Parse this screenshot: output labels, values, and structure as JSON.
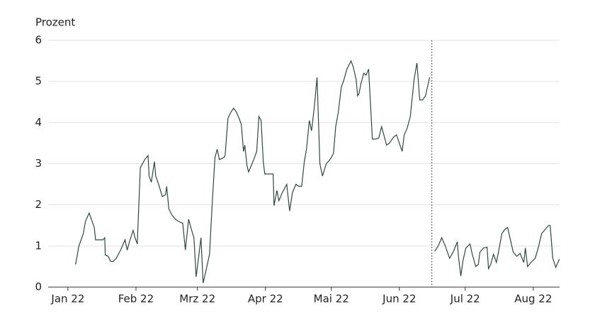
{
  "chart_data": {
    "type": "line",
    "y_label": "Prozent",
    "x": [
      3.5,
      5,
      7,
      8,
      9.7,
      11,
      12,
      12.6,
      14,
      16,
      16.8,
      17,
      18.4,
      19.4,
      20.6,
      22,
      24,
      26,
      27,
      28,
      29.7,
      30.6,
      31.6,
      33,
      35,
      36.5,
      37,
      38,
      38.7,
      39.4,
      40,
      41.3,
      43,
      44.5,
      45,
      46,
      47.4,
      49,
      50.3,
      52.3,
      53.5,
      55,
      56,
      57.4,
      58.4,
      59.7,
      60.6,
      61.6,
      62.9,
      64.5,
      65.8,
      67,
      68,
      69,
      71,
      71.6,
      72.9,
      74.2,
      75.5,
      76.8,
      78,
      79,
      80,
      80.6,
      81.6,
      82.3,
      83.9,
      85,
      86,
      87,
      88,
      89,
      89.7,
      91,
      92.6,
      93.5,
      93.9,
      95.2,
      96.1,
      97.7,
      99.7,
      101,
      102.3,
      103.9,
      105.2,
      106.5,
      107.7,
      108.7,
      110,
      111,
      112.3,
      113.5,
      114.8,
      116,
      117.7,
      119.4,
      121,
      122,
      123.2,
      124.5,
      125.8,
      127.1,
      129,
      130,
      131.3,
      132,
      132.6,
      133.5,
      134.8,
      135.8,
      137,
      138.7,
      140,
      141.6,
      142.9,
      144.2,
      145.2,
      146.5,
      148.4,
      149.7,
      151.3,
      152.3,
      153.2,
      154.5,
      156,
      157.7,
      159,
      160.3,
      161.6,
      162.9,
      164.8,
      165.8,
      167.1,
      168.7,
      170.3,
      171.9,
      173.9,
      175.5,
      177.4,
      178,
      179,
      180,
      181.3,
      183.2,
      184.2,
      185.8,
      187,
      187.7,
      189.4,
      191,
      191.6,
      192.6,
      193.9,
      195.2,
      196.5,
      197.7,
      199,
      200.3,
      201.6,
      202.9,
      204.5,
      206,
      207.7,
      208.4,
      209.4,
      211,
      212.9,
      214.5,
      215.8,
      217.4,
      219,
      219.7,
      220.9,
      222.3,
      223.9
    ],
    "series": [
      {
        "color": "#2f4743",
        "values": [
          0.55,
          1.0,
          1.3,
          1.6,
          1.8,
          1.6,
          1.45,
          1.15,
          1.15,
          1.15,
          1.2,
          0.78,
          0.75,
          0.63,
          0.62,
          0.7,
          0.9,
          1.15,
          0.9,
          1.1,
          1.38,
          1.2,
          1.05,
          2.9,
          3.1,
          3.2,
          2.7,
          2.55,
          2.8,
          3.05,
          2.7,
          2.5,
          2.2,
          2.25,
          2.45,
          1.9,
          1.75,
          1.65,
          1.6,
          1.55,
          0.9,
          1.65,
          1.45,
          1.2,
          0.25,
          0.8,
          1.2,
          0.1,
          0.4,
          0.8,
          2.1,
          3.15,
          3.35,
          3.1,
          3.15,
          3.2,
          4.1,
          4.25,
          4.35,
          4.25,
          4.1,
          3.95,
          3.3,
          3.45,
          2.95,
          2.8,
          3.0,
          3.15,
          3.3,
          4.15,
          4.05,
          3.05,
          2.75,
          2.75,
          2.75,
          2.75,
          1.98,
          2.35,
          2.1,
          2.3,
          2.5,
          1.85,
          2.3,
          2.5,
          2.45,
          2.45,
          3.05,
          3.35,
          4.05,
          3.8,
          4.4,
          5.1,
          3.0,
          2.7,
          3.0,
          3.1,
          3.25,
          3.9,
          4.25,
          4.85,
          5.05,
          5.3,
          5.5,
          5.35,
          5.05,
          4.65,
          4.7,
          4.95,
          5.2,
          5.15,
          5.3,
          3.6,
          3.6,
          3.62,
          3.9,
          3.65,
          3.45,
          3.5,
          3.65,
          3.7,
          3.45,
          3.3,
          3.7,
          3.85,
          4.15,
          5.05,
          5.45,
          4.55,
          4.55,
          4.65,
          5.1,
          null,
          0.87,
          1.0,
          1.2,
          1.0,
          0.7,
          0.85,
          1.1,
          0.7,
          0.27,
          0.65,
          0.95,
          1.05,
          0.8,
          0.5,
          0.55,
          0.85,
          0.95,
          0.97,
          0.45,
          0.55,
          0.8,
          0.6,
          0.95,
          1.3,
          1.4,
          1.45,
          1.15,
          0.85,
          0.75,
          0.82,
          0.6,
          0.95,
          0.5,
          0.6,
          0.7,
          1.0,
          1.3,
          1.4,
          1.5,
          1.5,
          0.7,
          0.48,
          0.68
        ]
      }
    ],
    "vline_x": 165.8,
    "xlim": [
      -9,
      224
    ],
    "xticks": [
      {
        "value": 0,
        "label": "Jan 22"
      },
      {
        "value": 31,
        "label": "Feb 22"
      },
      {
        "value": 59,
        "label": "Mrz 22"
      },
      {
        "value": 90,
        "label": "Apr 22"
      },
      {
        "value": 120,
        "label": "Mai 22"
      },
      {
        "value": 151,
        "label": "Jun 22"
      },
      {
        "value": 181,
        "label": "Jul 22"
      },
      {
        "value": 212,
        "label": "Aug 22"
      }
    ],
    "ylim": [
      0,
      6
    ],
    "yticks": [
      0,
      1,
      2,
      3,
      4,
      5,
      6
    ],
    "grid": true
  }
}
